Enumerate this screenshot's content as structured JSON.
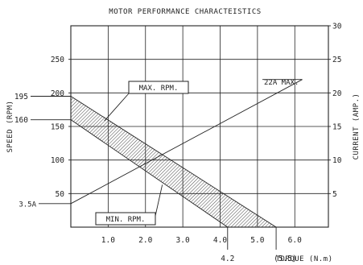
{
  "chart_data": {
    "type": "line",
    "title": "MOTOR PERFORMANCE CHARACTEISTICS",
    "xlabel": "TORQUE (N.m)",
    "ylabel": "SPEED (RPM)",
    "y2label": "CURRENT (AMP.)",
    "xlim": [
      0,
      6.9
    ],
    "ylim": [
      0,
      300
    ],
    "y2lim": [
      0,
      30
    ],
    "grid": true,
    "x_ticks": [
      {
        "value": 1,
        "label": "1.0"
      },
      {
        "value": 2,
        "label": "2.0"
      },
      {
        "value": 3,
        "label": "3.0"
      },
      {
        "value": 4,
        "label": "4.0"
      },
      {
        "value": 5,
        "label": "5.0"
      },
      {
        "value": 6,
        "label": "6.0"
      }
    ],
    "y_ticks": [
      {
        "value": 50,
        "label": "50"
      },
      {
        "value": 100,
        "label": "100"
      },
      {
        "value": 150,
        "label": "150"
      },
      {
        "value": 200,
        "label": "200"
      },
      {
        "value": 250,
        "label": "250"
      }
    ],
    "y2_ticks": [
      {
        "value": 5,
        "label": "5"
      },
      {
        "value": 10,
        "label": "10"
      },
      {
        "value": 15,
        "label": "15"
      },
      {
        "value": 20,
        "label": "20"
      },
      {
        "value": 25,
        "label": "25"
      },
      {
        "value": 30,
        "label": "30"
      }
    ],
    "y_markers": [
      {
        "value": 195,
        "label": "195"
      },
      {
        "value": 160,
        "label": "160"
      }
    ],
    "x_markers": [
      {
        "value": 4.2,
        "label": "4.2"
      },
      {
        "value": 5.5,
        "label": "(5.5)"
      }
    ],
    "series": [
      {
        "name": "MAX. RPM.",
        "axis": "speed",
        "x": [
          0,
          5.5
        ],
        "y": [
          195,
          0
        ]
      },
      {
        "name": "MIN. RPM.",
        "axis": "speed",
        "x": [
          0,
          4.2
        ],
        "y": [
          160,
          0
        ]
      },
      {
        "name": "22A MAX.",
        "axis": "current",
        "x": [
          0,
          6.2
        ],
        "y": [
          3.5,
          22
        ]
      }
    ],
    "annotations": [
      {
        "text": "MAX. RPM.",
        "target_series": "MAX. RPM."
      },
      {
        "text": "MIN. RPM.",
        "target_series": "MIN. RPM."
      },
      {
        "text": "22A MAX.",
        "target_series": "22A MAX."
      },
      {
        "text": "3.5A",
        "target_series": "22A MAX."
      }
    ]
  }
}
